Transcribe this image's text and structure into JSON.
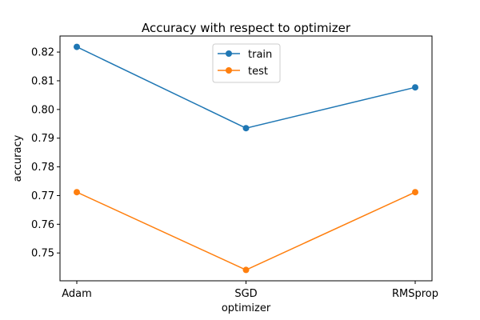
{
  "chart_data": {
    "type": "line",
    "title": "Accuracy with respect to optimizer",
    "xlabel": "optimizer",
    "ylabel": "accuracy",
    "categories": [
      "Adam",
      "SGD",
      "RMSprop"
    ],
    "series": [
      {
        "name": "train",
        "color": "#1f77b4",
        "values": [
          0.8218,
          0.7935,
          0.8077
        ]
      },
      {
        "name": "test",
        "color": "#ff7f0e",
        "values": [
          0.7712,
          0.7441,
          0.7712
        ]
      }
    ],
    "ylim": [
      0.7403,
      0.8256
    ],
    "yticks": [
      0.75,
      0.76,
      0.77,
      0.78,
      0.79,
      0.8,
      0.81,
      0.82
    ],
    "ytick_labels": [
      "0.75",
      "0.76",
      "0.77",
      "0.78",
      "0.79",
      "0.80",
      "0.81",
      "0.82"
    ],
    "grid": false,
    "legend_position": "top-center",
    "marker": "circle"
  }
}
